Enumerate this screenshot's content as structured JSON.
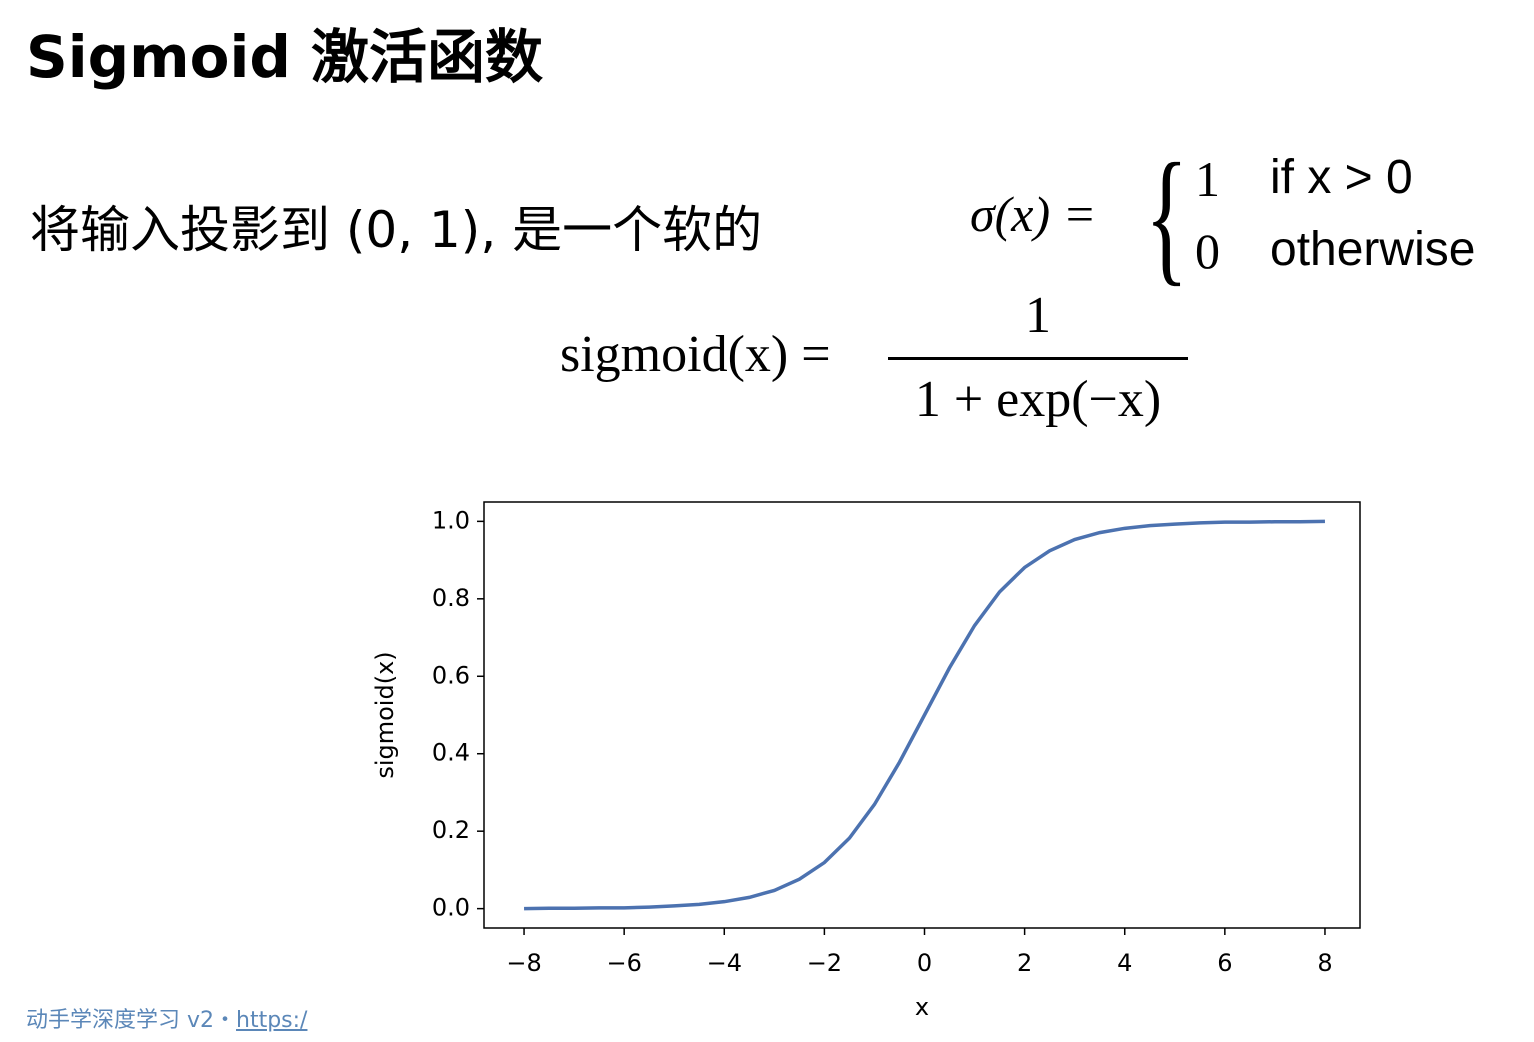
{
  "header": {
    "title": "Sigmoid 激活函数"
  },
  "text": "将输入投影到 (0, 1), 是一个软的",
  "step_formula": {
    "lhs": "σ(x) =",
    "cases": [
      {
        "value": "1",
        "condition": "if x > 0"
      },
      {
        "value": "0",
        "condition": "otherwise"
      }
    ]
  },
  "sigmoid_formula": {
    "lhs": "sigmoid(x) =",
    "numerator": "1",
    "denominator": "1 + exp(−x)"
  },
  "footer": {
    "text": "动手学深度学习 v2・",
    "link": "https:/"
  },
  "chart_data": {
    "type": "line",
    "xlabel": "x",
    "ylabel": "sigmoid(x)",
    "color": "#4c72b0",
    "x": [
      -8,
      -7.5,
      -7,
      -6.5,
      -6,
      -5.5,
      -5,
      -4.5,
      -4,
      -3.5,
      -3,
      -2.5,
      -2,
      -1.5,
      -1,
      -0.5,
      0,
      0.5,
      1,
      1.5,
      2,
      2.5,
      3,
      3.5,
      4,
      4.5,
      5,
      5.5,
      6,
      6.5,
      7,
      7.5,
      8
    ],
    "values": [
      0.0,
      0.001,
      0.001,
      0.002,
      0.002,
      0.004,
      0.007,
      0.011,
      0.018,
      0.029,
      0.047,
      0.076,
      0.119,
      0.182,
      0.269,
      0.378,
      0.5,
      0.622,
      0.731,
      0.818,
      0.881,
      0.924,
      0.953,
      0.971,
      0.982,
      0.989,
      0.993,
      0.996,
      0.998,
      0.998,
      0.999,
      0.999,
      1.0
    ],
    "xlim": [
      -8.8,
      8.7
    ],
    "ylim": [
      -0.05,
      1.05
    ],
    "xticks": [
      {
        "value": -8,
        "label": "−8"
      },
      {
        "value": -6,
        "label": "−6"
      },
      {
        "value": -4,
        "label": "−4"
      },
      {
        "value": -2,
        "label": "−2"
      },
      0,
      2,
      4,
      6,
      8
    ],
    "yticks": [
      {
        "value": 0,
        "label": "0.0"
      },
      0.2,
      0.4,
      0.6,
      0.8,
      {
        "value": 1,
        "label": "1.0"
      }
    ]
  }
}
